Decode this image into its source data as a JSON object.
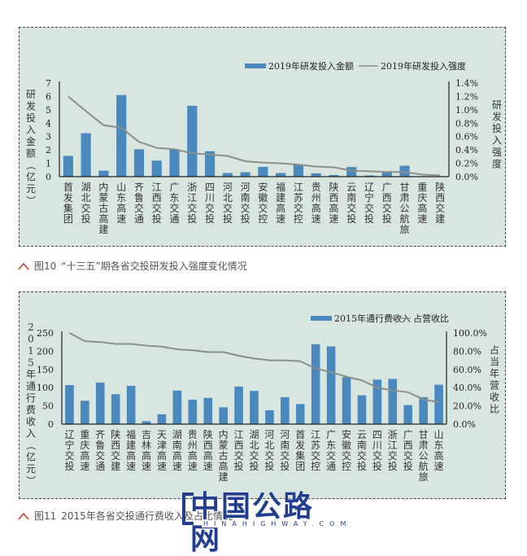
{
  "figure10": {
    "caption_label": "图10",
    "caption_text": "“十三五”期各省交投研发投入强度变化情况",
    "legend_bar": "2019年研发投入金额",
    "legend_line": "2019年研发投入强度",
    "left_axis_title": "研发投入金额（亿元）",
    "right_axis_title": "研发投入强度"
  },
  "figure11": {
    "caption_label": "图11",
    "caption_text": "2015年各省交投通行费收入及占比情况",
    "legend_bar": "2015年通行费收入",
    "legend_line": "占营收比",
    "left_axis_title": "2015年通行费收入（亿元）",
    "right_axis_title": "占当年营收比"
  },
  "watermark": {
    "cn": "中国公路网",
    "en": "HINAHIGHWAY.COM"
  },
  "colors": {
    "panel_bg": "#d9e5df",
    "bar": "#4a89be",
    "line": "#8a8f8c",
    "caption_arrow": "#c0392b",
    "watermark": "#233d8f"
  },
  "chart_data": [
    {
      "type": "bar+line",
      "title": "“十三五”期各省交投研发投入强度变化情况",
      "categories": [
        "首发集团",
        "湖北交投",
        "内蒙古高建",
        "山东高速",
        "齐鲁交通",
        "江西交投",
        "广东交通",
        "浙江交投",
        "四川交投",
        "河北交投",
        "河南交投",
        "安徽交控",
        "福建高速",
        "江苏交控",
        "贵州高速",
        "陕西高速",
        "云南交投",
        "辽宁交投",
        "广西交投",
        "甘肃公航旅",
        "重庆高速",
        "陕西交建"
      ],
      "series": [
        {
          "name": "2019年研发投入金额",
          "type": "bar",
          "axis": "left",
          "values": [
            1.55,
            3.25,
            0.45,
            6.1,
            2.05,
            1.2,
            2.05,
            5.3,
            1.9,
            0.27,
            0.33,
            0.73,
            0.27,
            0.93,
            0.25,
            0.13,
            0.72,
            0.09,
            0.31,
            0.82,
            0.02,
            0.01
          ]
        },
        {
          "name": "2019年研发投入强度",
          "type": "line",
          "axis": "right",
          "values": [
            1.2,
            0.98,
            0.77,
            0.73,
            0.52,
            0.43,
            0.41,
            0.35,
            0.33,
            0.31,
            0.23,
            0.21,
            0.2,
            0.18,
            0.15,
            0.14,
            0.09,
            0.08,
            0.07,
            0.07,
            0.03,
            0.02
          ]
        }
      ],
      "ylabel": "研发投入金额（亿元）",
      "ylabel_right": "研发投入强度",
      "ylim": [
        0,
        7
      ],
      "yticks": [
        0,
        1,
        2,
        3,
        4,
        5,
        6,
        7
      ],
      "ylim_right": [
        0,
        1.4
      ],
      "yticks_right": [
        "0.0%",
        "0.2%",
        "0.4%",
        "0.6%",
        "0.8%",
        "1.0%",
        "1.2%",
        "1.4%"
      ],
      "legend_position": "top-right",
      "grid": false
    },
    {
      "type": "bar+line",
      "title": "2015年各省交投通行费收入及占比情况",
      "categories": [
        "辽宁交投",
        "重庆高速",
        "齐鲁交通",
        "陕西交建",
        "福建高速",
        "吉林高速",
        "天津高速",
        "湖南高速",
        "贵州高速",
        "陕西高速",
        "内蒙古高建",
        "江西交投",
        "湖北交投",
        "河北交投",
        "河南交投",
        "首发集团",
        "江苏交控",
        "广东交通",
        "安徽交控",
        "云南交投",
        "四川交投",
        "浙江交投",
        "广西交投",
        "甘肃公航旅",
        "山东高速"
      ],
      "series": [
        {
          "name": "2015年通行费收入",
          "type": "bar",
          "axis": "left",
          "values": [
            107,
            64,
            114,
            82,
            105,
            8,
            27,
            92,
            67,
            72,
            46,
            103,
            91,
            38,
            74,
            55,
            219,
            213,
            129,
            79,
            122,
            124,
            52,
            74,
            108
          ]
        },
        {
          "name": "占营收比",
          "type": "line",
          "axis": "right",
          "values": [
            100,
            91,
            90,
            88,
            88,
            86,
            85,
            82,
            81,
            79,
            79,
            75,
            72,
            70,
            70,
            69,
            61,
            57,
            52,
            48,
            40,
            37,
            35,
            27,
            24
          ]
        }
      ],
      "ylabel": "2015年通行费收入（亿元）",
      "ylabel_right": "占当年营收比",
      "ylim": [
        0,
        250
      ],
      "yticks": [
        0,
        50,
        100,
        150,
        200,
        250
      ],
      "ylim_right": [
        0,
        100
      ],
      "yticks_right": [
        "0.0%",
        "20.0%",
        "40.0%",
        "60.0%",
        "80.0%",
        "100.0%"
      ],
      "legend_position": "top-right",
      "grid": false
    }
  ]
}
